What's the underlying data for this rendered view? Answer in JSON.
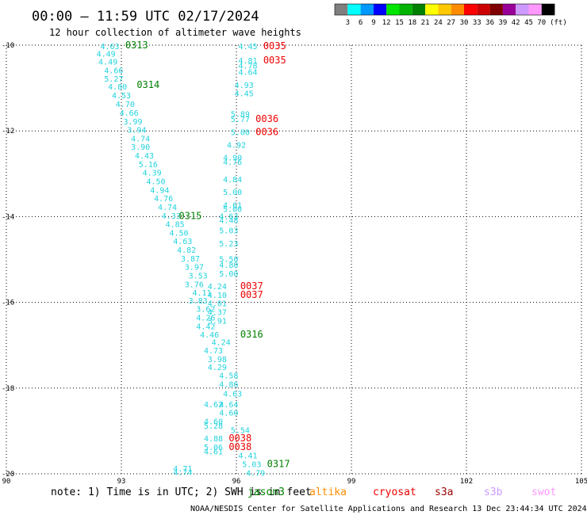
{
  "title": "00:00 – 11:59 UTC 02/17/2024",
  "subtitle": "12 hour collection of altimeter wave heights",
  "color_scale": {
    "labels": [
      "3",
      "6",
      "9",
      "12",
      "15",
      "18",
      "21",
      "24",
      "27",
      "30",
      "33",
      "36",
      "39",
      "42",
      "45",
      "70"
    ],
    "unit": "(ft)",
    "colors": [
      "#7f7f7f",
      "#00ffff",
      "#0099ff",
      "#0000ff",
      "#00e600",
      "#00b300",
      "#008000",
      "#ffff00",
      "#ffc800",
      "#ff8c00",
      "#ff0000",
      "#cc0000",
      "#800000",
      "#990099",
      "#cc99ff",
      "#ff99ff",
      "#000000"
    ]
  },
  "colors": {
    "cyan": "#22d3dd",
    "green": "#008000",
    "red": "#ee0000"
  },
  "note": "note: 1) Time is in UTC; 2) SWH is in feet",
  "satellites": [
    {
      "name": "jason3",
      "color": "#008000"
    },
    {
      "name": "altika",
      "color": "#ff8c00"
    },
    {
      "name": "cryosat",
      "color": "#ee0000"
    },
    {
      "name": "s3a",
      "color": "#990000"
    },
    {
      "name": "s3b",
      "color": "#cc99ff"
    },
    {
      "name": "swot",
      "color": "#ff99ff"
    }
  ],
  "footer": "NOAA/NESDIS Center for Satellite Applications and Research    13 Dec 23:44:34 UTC 2024",
  "chart_data": {
    "type": "scatter",
    "title": "00:00 – 11:59 UTC 02/17/2024",
    "subtitle": "12 hour collection of altimeter wave heights",
    "xlim": [
      90,
      105
    ],
    "ylim": [
      -20,
      -10
    ],
    "x_ticks": [
      "90",
      "93",
      "96",
      "99",
      "102",
      "105"
    ],
    "y_ticks": [
      "-10",
      "-12",
      "-14",
      "-16",
      "-18",
      "-20"
    ],
    "grid": true,
    "series": [
      {
        "name": "jason3",
        "values": [
          {
            "x": 92.7,
            "y": -10.02,
            "v": "4.63"
          },
          {
            "x": 92.6,
            "y": -10.19,
            "v": "4.49"
          },
          {
            "x": 92.65,
            "y": -10.38,
            "v": "4.49"
          },
          {
            "x": 92.8,
            "y": -10.58,
            "v": "4.66"
          },
          {
            "x": 92.8,
            "y": -10.78,
            "v": "5.27"
          },
          {
            "x": 92.9,
            "y": -10.96,
            "v": "4.80"
          },
          {
            "x": 93.0,
            "y": -11.16,
            "v": "4.53"
          },
          {
            "x": 93.1,
            "y": -11.37,
            "v": "4.70"
          },
          {
            "x": 93.2,
            "y": -11.57,
            "v": "4.66"
          },
          {
            "x": 93.3,
            "y": -11.77,
            "v": "3.99"
          },
          {
            "x": 93.4,
            "y": -11.97,
            "v": "3.94"
          },
          {
            "x": 93.5,
            "y": -12.17,
            "v": "4.74"
          },
          {
            "x": 93.5,
            "y": -12.37,
            "v": "3.90"
          },
          {
            "x": 93.6,
            "y": -12.57,
            "v": "4.43"
          },
          {
            "x": 93.7,
            "y": -12.77,
            "v": "5.16"
          },
          {
            "x": 93.8,
            "y": -12.97,
            "v": "4.39"
          },
          {
            "x": 93.9,
            "y": -13.17,
            "v": "4.50"
          },
          {
            "x": 94.0,
            "y": -13.37,
            "v": "4.94"
          },
          {
            "x": 94.1,
            "y": -13.57,
            "v": "4.76"
          },
          {
            "x": 94.2,
            "y": -13.77,
            "v": "4.74"
          },
          {
            "x": 94.3,
            "y": -13.97,
            "v": "4.33"
          },
          {
            "x": 94.4,
            "y": -14.17,
            "v": "4.85"
          },
          {
            "x": 94.5,
            "y": -14.37,
            "v": "4.50"
          },
          {
            "x": 94.6,
            "y": -14.57,
            "v": "4.63"
          },
          {
            "x": 94.7,
            "y": -14.77,
            "v": "4.82"
          },
          {
            "x": 94.8,
            "y": -14.97,
            "v": "3.87"
          },
          {
            "x": 94.9,
            "y": -15.17,
            "v": "3.97"
          },
          {
            "x": 95.0,
            "y": -15.37,
            "v": "3.53"
          },
          {
            "x": 94.9,
            "y": -15.57,
            "v": "3.76"
          },
          {
            "x": 95.1,
            "y": -15.77,
            "v": "4.11"
          },
          {
            "x": 95.0,
            "y": -15.95,
            "v": "3.83"
          },
          {
            "x": 95.2,
            "y": -16.15,
            "v": "3.62"
          },
          {
            "x": 95.2,
            "y": -16.35,
            "v": "4.26"
          },
          {
            "x": 95.2,
            "y": -16.55,
            "v": "4.42"
          },
          {
            "x": 95.3,
            "y": -16.75,
            "v": "4.46"
          },
          {
            "x": 95.6,
            "y": -16.92,
            "v": "4.24"
          },
          {
            "x": 95.4,
            "y": -17.12,
            "v": "4.73"
          },
          {
            "x": 95.5,
            "y": -17.32,
            "v": "3.98"
          },
          {
            "x": 95.5,
            "y": -17.5,
            "v": "4.29"
          },
          {
            "x": 95.8,
            "y": -17.7,
            "v": "4.58"
          },
          {
            "x": 95.8,
            "y": -17.9,
            "v": "4.86"
          },
          {
            "x": 95.9,
            "y": -18.12,
            "v": "4.63"
          },
          {
            "x": 95.4,
            "y": -18.37,
            "v": "4.62"
          },
          {
            "x": 95.8,
            "y": -18.37,
            "v": "4.64"
          },
          {
            "x": 95.8,
            "y": -18.57,
            "v": "4.60"
          },
          {
            "x": 95.4,
            "y": -18.77,
            "v": "4.60"
          },
          {
            "x": 95.4,
            "y": -18.87,
            "v": "5.28"
          },
          {
            "x": 96.1,
            "y": -18.97,
            "v": "5.54"
          },
          {
            "x": 95.4,
            "y": -19.17,
            "v": "4.88"
          },
          {
            "x": 95.4,
            "y": -19.37,
            "v": "5.06"
          },
          {
            "x": 95.4,
            "y": -19.47,
            "v": "4.61"
          },
          {
            "x": 96.3,
            "y": -19.57,
            "v": "4.41"
          },
          {
            "x": 96.4,
            "y": -19.77,
            "v": "5.03"
          },
          {
            "x": 96.5,
            "y": -19.97,
            "v": "4.79"
          },
          {
            "x": 94.6,
            "y": -19.87,
            "v": "4.71"
          },
          {
            "x": 94.6,
            "y": -19.95,
            "v": "4.74"
          },
          {
            "x": 96.3,
            "y": -10.02,
            "v": "4.45"
          },
          {
            "x": 96.3,
            "y": -10.35,
            "v": "4.81"
          },
          {
            "x": 96.3,
            "y": -10.47,
            "v": "4.78"
          },
          {
            "x": 96.3,
            "y": -10.62,
            "v": "4.64"
          },
          {
            "x": 96.2,
            "y": -10.92,
            "v": "4.93"
          },
          {
            "x": 96.2,
            "y": -11.12,
            "v": "4.45"
          },
          {
            "x": 96.1,
            "y": -11.6,
            "v": "5.89"
          },
          {
            "x": 96.1,
            "y": -11.72,
            "v": "5.77"
          },
          {
            "x": 96.1,
            "y": -12.02,
            "v": "5.00"
          },
          {
            "x": 96.0,
            "y": -12.32,
            "v": "4.92"
          },
          {
            "x": 95.9,
            "y": -12.62,
            "v": "4.90"
          },
          {
            "x": 95.9,
            "y": -12.72,
            "v": "4.76"
          },
          {
            "x": 95.9,
            "y": -13.12,
            "v": "4.84"
          },
          {
            "x": 95.9,
            "y": -13.42,
            "v": "5.00"
          },
          {
            "x": 95.9,
            "y": -13.72,
            "v": "4.61"
          },
          {
            "x": 95.9,
            "y": -13.82,
            "v": "5.00"
          },
          {
            "x": 95.8,
            "y": -13.98,
            "v": "4.63"
          },
          {
            "x": 95.8,
            "y": -14.08,
            "v": "4.48"
          },
          {
            "x": 95.8,
            "y": -14.32,
            "v": "5.03"
          },
          {
            "x": 95.8,
            "y": -14.62,
            "v": "5.23"
          },
          {
            "x": 95.8,
            "y": -14.98,
            "v": "5.50"
          },
          {
            "x": 95.8,
            "y": -15.12,
            "v": "4.80"
          },
          {
            "x": 95.8,
            "y": -15.32,
            "v": "5.00"
          },
          {
            "x": 95.5,
            "y": -15.62,
            "v": "4.24"
          },
          {
            "x": 95.5,
            "y": -15.82,
            "v": "4.10"
          },
          {
            "x": 95.5,
            "y": -16.02,
            "v": "4.01"
          },
          {
            "x": 95.5,
            "y": -16.22,
            "v": "4.37"
          },
          {
            "x": 95.5,
            "y": -16.42,
            "v": "3.91"
          }
        ],
        "pass_labels": [
          {
            "x": 93.1,
            "y": -10.0,
            "v": "0313"
          },
          {
            "x": 93.4,
            "y": -10.92,
            "v": "0314"
          },
          {
            "x": 94.5,
            "y": -13.98,
            "v": "0315"
          },
          {
            "x": 96.1,
            "y": -16.75,
            "v": "0316"
          },
          {
            "x": 96.8,
            "y": -19.77,
            "v": "0317"
          }
        ]
      },
      {
        "name": "cryosat",
        "values": [],
        "pass_labels": [
          {
            "x": 96.7,
            "y": -10.02,
            "v": "0035"
          },
          {
            "x": 96.7,
            "y": -10.35,
            "v": "0035"
          },
          {
            "x": 96.5,
            "y": -11.72,
            "v": "0036"
          },
          {
            "x": 96.5,
            "y": -12.02,
            "v": "0036"
          },
          {
            "x": 96.1,
            "y": -15.62,
            "v": "0037"
          },
          {
            "x": 96.1,
            "y": -15.82,
            "v": "0037"
          },
          {
            "x": 95.8,
            "y": -19.17,
            "v": "0038"
          },
          {
            "x": 95.8,
            "y": -19.37,
            "v": "0038"
          }
        ]
      }
    ]
  }
}
